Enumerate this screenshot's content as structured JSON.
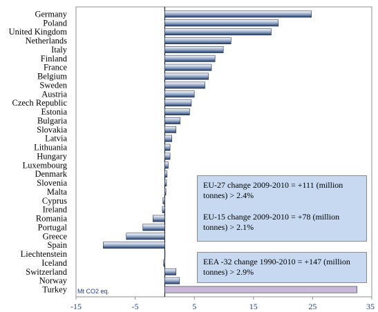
{
  "chart_data": {
    "type": "bar",
    "orientation": "horizontal",
    "categories": [
      "Germany",
      "Poland",
      "United Kingdom",
      "Netherlands",
      "Italy",
      "Finland",
      "France",
      "Belgium",
      "Sweden",
      "Austria",
      "Czech Republic",
      "Estonia",
      "Bulgaria",
      "Slovakia",
      "Latvia",
      "Lithuania",
      "Hungary",
      "Luxembourg",
      "Denmark",
      "Slovenia",
      "Malta",
      "Cyprus",
      "Ireland",
      "Romania",
      "Portugal",
      "Greece",
      "Spain",
      "Liechtenstein",
      "Iceland",
      "Switzerland",
      "Norway",
      "Turkey"
    ],
    "values": [
      24.8,
      19.2,
      18.0,
      11.2,
      9.9,
      8.5,
      7.9,
      7.4,
      6.8,
      5.0,
      4.5,
      4.2,
      2.6,
      1.9,
      1.2,
      0.9,
      0.9,
      0.6,
      0.4,
      0.3,
      0.2,
      -0.3,
      -0.4,
      -2.0,
      -3.7,
      -6.5,
      -10.4,
      0.0,
      -0.2,
      1.9,
      2.5,
      32.5
    ],
    "xlim": [
      -15,
      35
    ],
    "xticks": [
      -15,
      -5,
      5,
      15,
      25,
      35
    ],
    "unit_label": "Mt CO2 eq.",
    "grid": false,
    "colors": {
      "bar_fill_dark": "#1f3864",
      "bar_fill_light": "#ffffff",
      "turkey_fill": "#c9b8d8",
      "tick_label": "#1f3c99",
      "box_fill": "#c6d9f1"
    }
  },
  "annotations": {
    "eu27": "EU-27 change 2009-2010 =  +111 (million tonnes) > 2.4%",
    "eu15": "EU-15 change 2009-2010 = +78 (million tonnes) > 2.1%",
    "eea32": "EEA -32 change 1990-2010 =  +147 (million tonnes) > 2.9%"
  }
}
